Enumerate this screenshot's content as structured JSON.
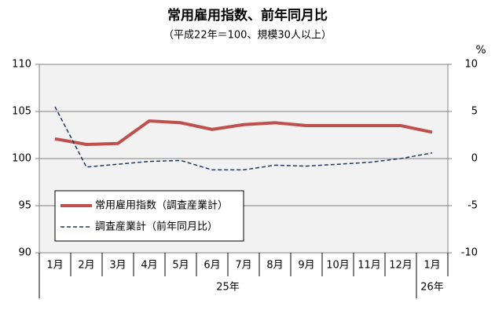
{
  "chart_data": {
    "type": "line",
    "title": "常用雇用指数、前年同月比",
    "subtitle": "（平成22年＝100、規模30人以上）",
    "y2_unit": "%",
    "categories": [
      "1月",
      "2月",
      "3月",
      "4月",
      "5月",
      "6月",
      "7月",
      "8月",
      "9月",
      "10月",
      "11月",
      "12月",
      "1月"
    ],
    "year_labels": [
      "25年",
      "26年"
    ],
    "series": [
      {
        "name": "常用雇用指数（調査産業計）",
        "color": "#c0504d",
        "values": [
          102.1,
          101.5,
          101.6,
          104.0,
          103.8,
          103.1,
          103.6,
          103.8,
          103.5,
          103.5,
          103.5,
          103.5,
          102.8
        ]
      },
      {
        "name": "調査産業計（前年同月比）",
        "color": "#1f3864",
        "axis": "y2",
        "dashed": true,
        "values": [
          5.5,
          -0.9,
          -0.6,
          -0.3,
          -0.2,
          -1.2,
          -1.2,
          -0.7,
          -0.8,
          -0.6,
          -0.4,
          0.0,
          0.6
        ]
      }
    ],
    "ylim": [
      90,
      110
    ],
    "yticks": [
      90,
      95,
      100,
      105,
      110
    ],
    "y2lim": [
      -10,
      10
    ],
    "y2ticks": [
      -10,
      -5,
      0,
      5,
      10
    ],
    "grid": true
  }
}
